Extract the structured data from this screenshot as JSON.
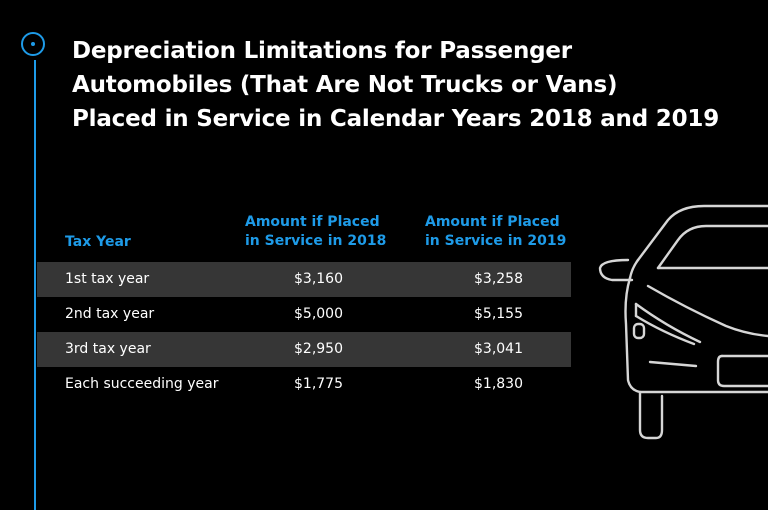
{
  "title_lines": [
    "Depreciation Limitations for Passenger",
    "Automobiles (That Are Not Trucks or Vans)",
    "Placed in Service in Calendar Years 2018 and 2019"
  ],
  "table": {
    "headers": {
      "tax_year": "Tax Year",
      "col_2018_line1": "Amount if Placed",
      "col_2018_line2": "in Service in 2018",
      "col_2019_line1": "Amount if Placed",
      "col_2019_line2": "in Service in 2019"
    },
    "rows": [
      {
        "year": "1st tax year",
        "v2018": "$3,160",
        "v2019": "$3,258"
      },
      {
        "year": "2nd tax year",
        "v2018": "$5,000",
        "v2019": "$5,155"
      },
      {
        "year": "3rd tax year",
        "v2018": "$2,950",
        "v2019": "$3,041"
      },
      {
        "year": "Each succeeding year",
        "v2018": "$1,775",
        "v2019": "$1,830"
      }
    ]
  },
  "colors": {
    "accent": "#1e9be8",
    "row_shade": "#363636",
    "background": "#000000",
    "text": "#ffffff"
  },
  "icons": [
    "timeline-dot-icon",
    "car-front-icon"
  ]
}
